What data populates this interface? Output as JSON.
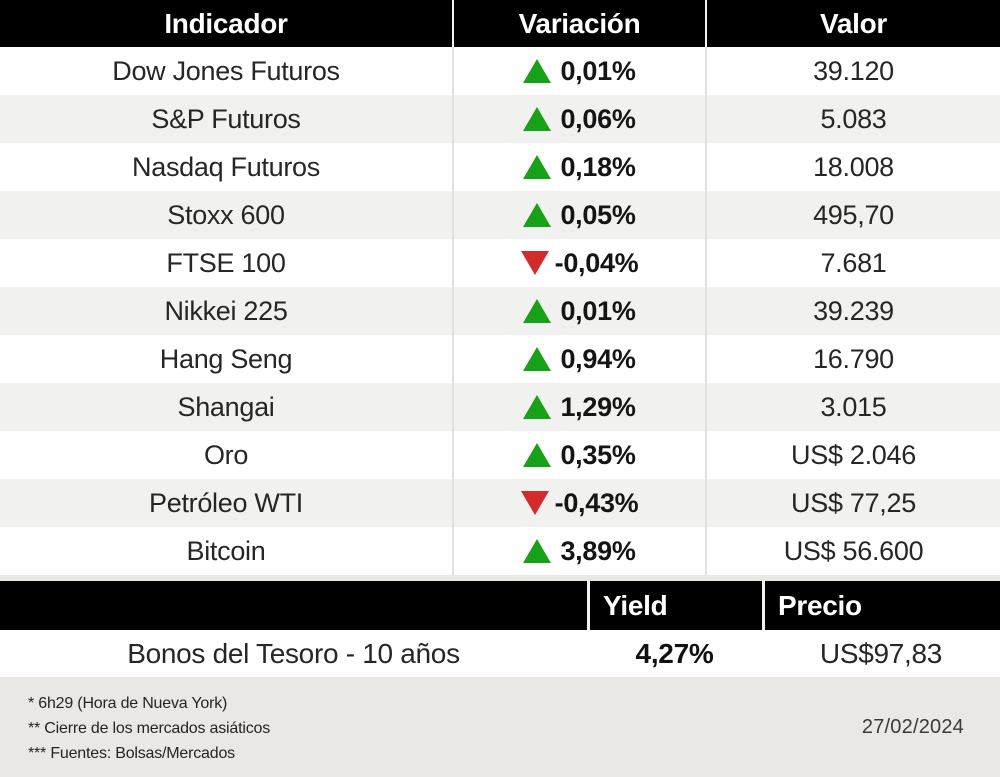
{
  "colors": {
    "up": "#18a118",
    "down": "#d32b2b",
    "header_bg": "#000000",
    "row_alt": "#f1f1ef",
    "page_bg": "#e9e8e5"
  },
  "table": {
    "headers": [
      "Indicador",
      "Variación",
      "Valor"
    ],
    "rows": [
      {
        "indicator": "Dow Jones Futuros",
        "direction": "up",
        "variation": "0,01%",
        "value": "39.120"
      },
      {
        "indicator": "S&P Futuros",
        "direction": "up",
        "variation": "0,06%",
        "value": "5.083"
      },
      {
        "indicator": "Nasdaq Futuros",
        "direction": "up",
        "variation": "0,18%",
        "value": "18.008"
      },
      {
        "indicator": "Stoxx 600",
        "direction": "up",
        "variation": "0,05%",
        "value": "495,70"
      },
      {
        "indicator": "FTSE 100",
        "direction": "down",
        "variation": "-0,04%",
        "value": "7.681"
      },
      {
        "indicator": "Nikkei 225",
        "direction": "up",
        "variation": "0,01%",
        "value": "39.239"
      },
      {
        "indicator": "Hang Seng",
        "direction": "up",
        "variation": "0,94%",
        "value": "16.790"
      },
      {
        "indicator": "Shangai",
        "direction": "up",
        "variation": "1,29%",
        "value": "3.015"
      },
      {
        "indicator": "Oro",
        "direction": "up",
        "variation": "0,35%",
        "value": "US$ 2.046"
      },
      {
        "indicator": "Petróleo WTI",
        "direction": "down",
        "variation": "-0,43%",
        "value": "US$ 77,25"
      },
      {
        "indicator": "Bitcoin",
        "direction": "up",
        "variation": "3,89%",
        "value": "US$ 56.600"
      }
    ]
  },
  "bonds": {
    "headers": [
      "Yield",
      "Precio"
    ],
    "row": {
      "indicator": "Bonos del Tesoro - 10 años",
      "yield": "4,27%",
      "price": "US$97,83"
    }
  },
  "footer": {
    "notes": [
      "* 6h29 (Hora de Nueva York)",
      "** Cierre de los mercados asiáticos",
      "*** Fuentes: Bolsas/Mercados"
    ],
    "date": "27/02/2024"
  },
  "chart_data": {
    "type": "table",
    "title": "",
    "columns": [
      "Indicador",
      "Variación",
      "Valor"
    ],
    "rows": [
      [
        "Dow Jones Futuros",
        "+0,01%",
        "39.120"
      ],
      [
        "S&P Futuros",
        "+0,06%",
        "5.083"
      ],
      [
        "Nasdaq Futuros",
        "+0,18%",
        "18.008"
      ],
      [
        "Stoxx 600",
        "+0,05%",
        "495,70"
      ],
      [
        "FTSE 100",
        "-0,04%",
        "7.681"
      ],
      [
        "Nikkei 225",
        "+0,01%",
        "39.239"
      ],
      [
        "Hang Seng",
        "+0,94%",
        "16.790"
      ],
      [
        "Shangai",
        "+1,29%",
        "3.015"
      ],
      [
        "Oro",
        "+0,35%",
        "US$ 2.046"
      ],
      [
        "Petróleo WTI",
        "-0,43%",
        "US$ 77,25"
      ],
      [
        "Bitcoin",
        "+3,89%",
        "US$ 56.600"
      ]
    ],
    "secondary_table": {
      "columns": [
        "",
        "Yield",
        "Precio"
      ],
      "rows": [
        [
          "Bonos del Tesoro - 10 años",
          "4,27%",
          "US$97,83"
        ]
      ]
    },
    "annotations": [
      "* 6h29 (Hora de Nueva York)",
      "** Cierre de los mercados asiáticos",
      "*** Fuentes: Bolsas/Mercados",
      "27/02/2024"
    ]
  }
}
